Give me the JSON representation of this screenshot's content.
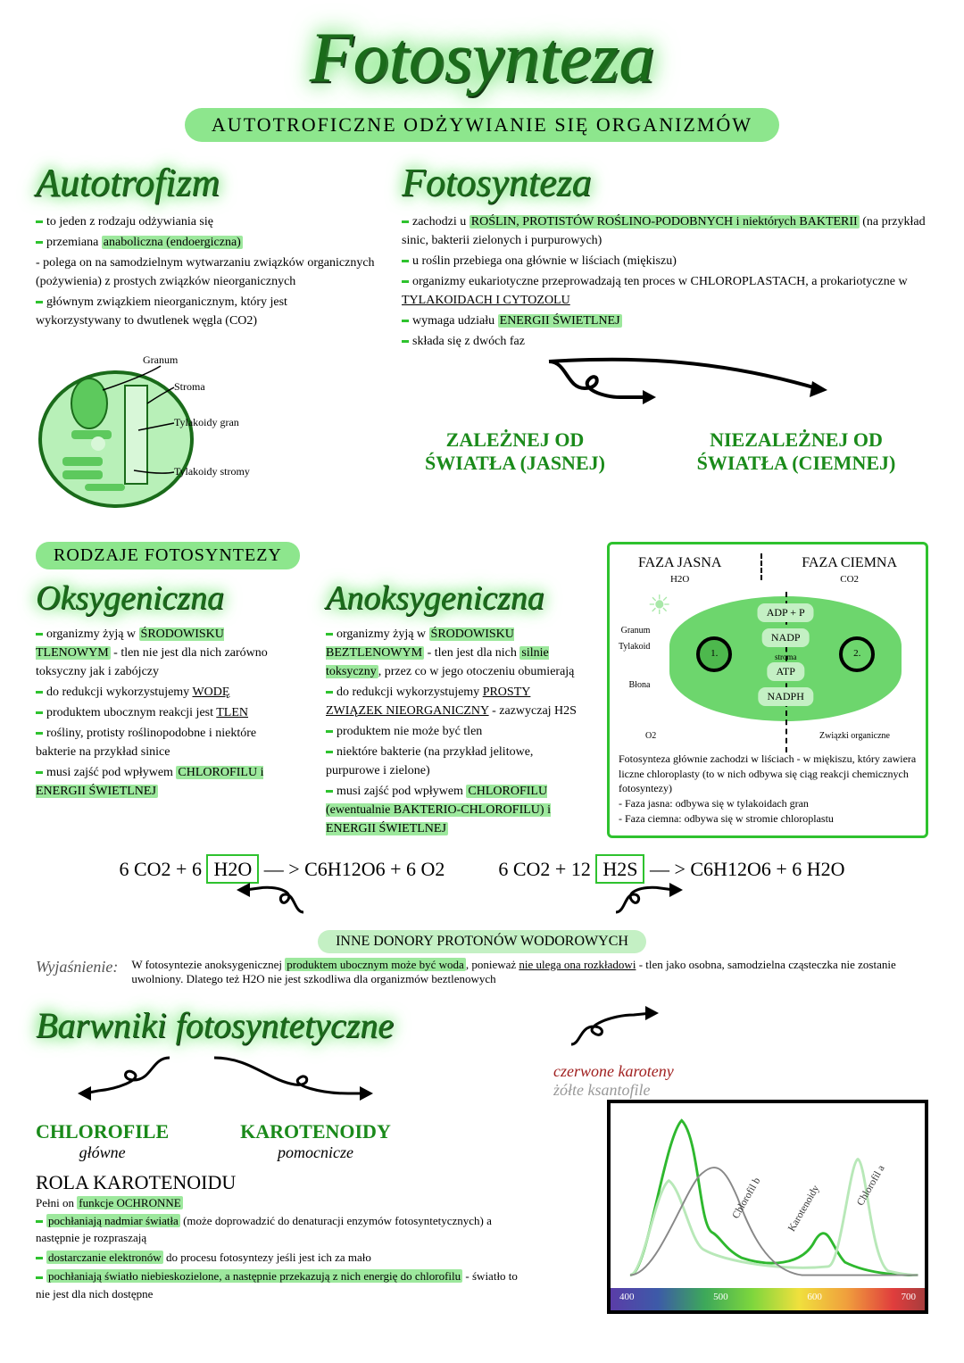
{
  "colors": {
    "accent_green": "#2ec22e",
    "light_green": "#8de68d",
    "pale_green": "#c4f0c4",
    "dark_green_text": "#1a6b1a",
    "phase_green_text": "#1a8a1a",
    "caroten_red": "#a02020",
    "glow": "#5de05d",
    "background": "#ffffff",
    "black": "#000000"
  },
  "title": "Fotosynteza",
  "subtitle": "AUTOTROFICZNE ODŻYWIANIE SIĘ ORGANIZMÓW",
  "autotrofizm": {
    "heading": "Autotrofizm",
    "lines": [
      {
        "dash": true,
        "text": "to jeden z rodzaju odżywiania się"
      },
      {
        "dash": true,
        "text": "przemiana <span class='hl'>anaboliczna (endoergiczna)</span>"
      },
      {
        "dash": false,
        "text": "- polega on na samodzielnym wytwarzaniu związków organicznych (pożywienia) z prostych związków nieorganicznych"
      },
      {
        "dash": true,
        "text": "głównym związkiem nieorganicznym, który jest wykorzystywany to dwutlenek węgla (CO2)"
      }
    ],
    "diagram_labels": {
      "granum": "Granum",
      "stroma": "Stroma",
      "tylakoidy_gran": "Tylakoidy gran",
      "tylakoidy_stromy": "Tylakoidy stromy"
    }
  },
  "fotosynteza_section": {
    "heading": "Fotosynteza",
    "lines": [
      {
        "dash": true,
        "text": "zachodzi u <span class='hl'>ROŚLIN, PROTISTÓW ROŚLINO-PODOBNYCH i niektórych BAKTERII</span> (na przykład sinic, bakterii zielonych i purpurowych)"
      },
      {
        "dash": true,
        "text": "u roślin przebiega ona głównie w liściach (miękiszu)"
      },
      {
        "dash": true,
        "text": "organizmy eukariotyczne przeprowadzają ten proces w CHLOROPLASTACH, a prokariotyczne w <u>TYLAKOIDACH I CYTOZOLU</u>"
      },
      {
        "dash": true,
        "text": "wymaga udziału <span class='hl'>ENERGII ŚWIETLNEJ</span>"
      },
      {
        "dash": true,
        "text": "składa się z dwóch faz"
      }
    ],
    "phase_left": "ZALEŻNEJ OD ŚWIATŁA (JASNEJ)",
    "phase_right": "NIEZALEŻNEJ OD ŚWIATŁA (CIEMNEJ)"
  },
  "phase_box": {
    "jasna_label": "FAZA JASNA",
    "jasna_sub": "H2O",
    "ciemna_label": "FAZA CIEMNA",
    "ciemna_sub": "CO2",
    "mid_labels": [
      "ADP + P",
      "NADP",
      "ATP",
      "NADPH"
    ],
    "stroma_label": "stroma",
    "left_side": [
      "Granum",
      "Tylakoid",
      "Błona"
    ],
    "bottom_left": "O2",
    "bottom_right": "Związki organiczne",
    "circle_left": "1.",
    "circle_right": "2.",
    "description": [
      "Fotosynteza głównie zachodzi w liściach - w miękiszu, który zawiera liczne chloroplasty (to w nich odbywa się ciąg reakcji chemicznych fotosyntezy)",
      "- Faza jasna: odbywa się w tylakoidach gran",
      "- Faza ciemna: odbywa się w stromie chloroplastu"
    ]
  },
  "rodzaje": {
    "banner": "RODZAJE FOTOSYNTEZY",
    "oksy": {
      "heading": "Oksygeniczna",
      "lines": [
        {
          "dash": true,
          "text": "organizmy żyją w <span class='hl'>ŚRODOWISKU TLENOWYM</span> - tlen nie jest dla nich zarówno toksyczny jak i zabójczy"
        },
        {
          "dash": true,
          "text": "do redukcji wykorzystujemy <u>WODĘ</u>"
        },
        {
          "dash": true,
          "text": "produktem ubocznym reakcji jest <u>TLEN</u>"
        },
        {
          "dash": true,
          "text": "rośliny, protisty roślinopodobne i niektóre bakterie na przykład sinice"
        },
        {
          "dash": true,
          "text": "musi zajść pod wpływem <span class='hl'>CHLOROFILU i ENERGII ŚWIETLNEJ</span>"
        }
      ]
    },
    "anoksy": {
      "heading": "Anoksygeniczna",
      "lines": [
        {
          "dash": true,
          "text": "organizmy żyją w <span class='hl'>ŚRODOWISKU BEZTLENOWYM</span> - tlen jest dla nich <span class='hl'>silnie toksyczny</span>, przez co w jego otoczeniu obumierają"
        },
        {
          "dash": true,
          "text": "do redukcji wykorzystujemy <u>PROSTY ZWIĄZEK NIEORGANICZNY</u> - zazwyczaj H2S"
        },
        {
          "dash": true,
          "text": "produktem nie może być tlen"
        },
        {
          "dash": true,
          "text": "niektóre bakterie (na przykład jelitowe, purpurowe i zielone)"
        },
        {
          "dash": true,
          "text": "musi zajść pod wpływem <span class='hl'>CHLOROFILU (ewentualnie BAKTERIO-CHLOROFILU) i ENERGII ŚWIETLNEJ</span>"
        }
      ]
    }
  },
  "equations": {
    "eq1_left": "6 CO2 + 6",
    "eq1_box": "H2O",
    "eq1_right": "— > C6H12O6 + 6 O2",
    "eq2_left": "6 CO2 + 12",
    "eq2_box": "H2S",
    "eq2_right": "— > C6H12O6 + 6 H2O",
    "donor_banner": "INNE DONORY PROTONÓW WODOROWYCH",
    "explain_label": "Wyjaśnienie:",
    "explain_text": "W fotosyntezie anoksygenicznej <span class='hl'>produktem ubocznym może być woda</span>, ponieważ <u>nie ulega ona rozkładowi</u> - tlen jako osobna, samodzielna cząsteczka nie zostanie uwolniony. Dlatego też H2O nie jest szkodliwa dla organizmów beztlenowych"
  },
  "barwniki": {
    "heading": "Barwniki fotosyntetyczne",
    "chlorofile": {
      "main": "CHLOROFILE",
      "sub": "główne"
    },
    "karotenoidy": {
      "main": "KAROTENOIDY",
      "sub": "pomocnicze"
    },
    "caroten_types": [
      "czerwone karoteny",
      "żółte ksantofile"
    ],
    "rola_heading": "ROLA KAROTENOIDU",
    "rola_intro": "Pełni on <span class='hl'>funkcje OCHRONNE</span>",
    "rola_lines": [
      {
        "dash": true,
        "text": "<span class='hl'>pochłaniają nadmiar światła</span> (może doprowadzić do denaturacji enzymów fotosyntetycznych) a następnie je rozpraszają"
      },
      {
        "dash": true,
        "text": "<span class='hl'>dostarczanie elektronów</span> do procesu fotosyntezy jeśli jest ich za mało"
      },
      {
        "dash": true,
        "text": "<span class='hl'>pochłaniają światło niebieskozielone, a następnie przekazują z nich energię do chlorofilu</span> - światło to nie jest dla nich dostępne"
      }
    ]
  },
  "spectrum": {
    "xticks": [
      "400",
      "500",
      "600",
      "700"
    ],
    "curves": [
      {
        "name": "chlorofil_b",
        "color": "#2eb82e",
        "label": "Chlorofil b",
        "peaks": [
          {
            "x": 0.22,
            "y": 0.92
          },
          {
            "x": 0.68,
            "y": 0.25
          }
        ]
      },
      {
        "name": "chlorofil_a",
        "color": "#b8e8b8",
        "label": "Chlorofil a",
        "peaks": [
          {
            "x": 0.18,
            "y": 0.55
          },
          {
            "x": 0.78,
            "y": 0.7
          }
        ]
      },
      {
        "name": "karotenoidy",
        "color": "#888888",
        "label": "Karotenoidy",
        "peaks": [
          {
            "x": 0.3,
            "y": 0.6
          }
        ]
      }
    ],
    "label_rotation_deg": -60
  }
}
